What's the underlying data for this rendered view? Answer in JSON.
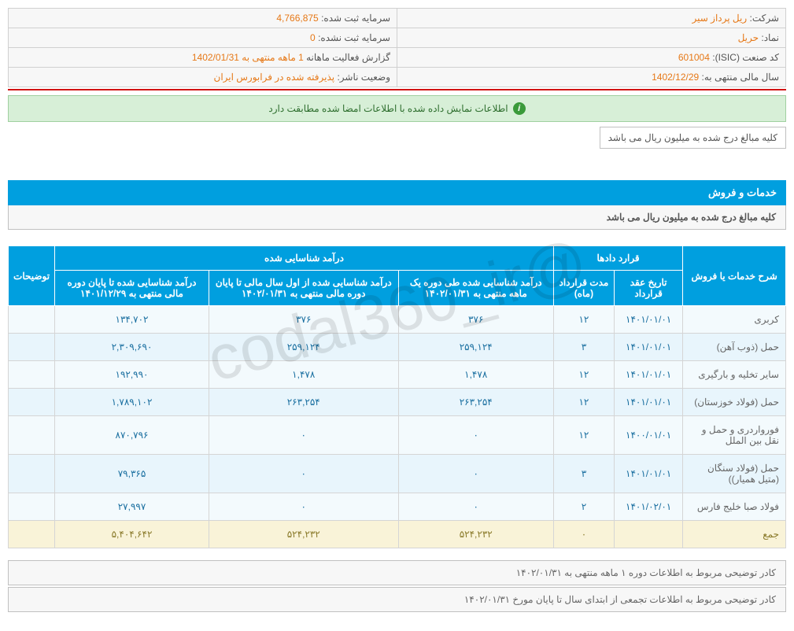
{
  "info": {
    "company_label": "شرکت:",
    "company_value": "ریل پرداز سیر",
    "capital_label": "سرمایه ثبت شده:",
    "capital_value": "4,766,875",
    "symbol_label": "نماد:",
    "symbol_value": "حریل",
    "unreg_capital_label": "سرمایه ثبت نشده:",
    "unreg_capital_value": "0",
    "isic_label": "کد صنعت (ISIC):",
    "isic_value": "601004",
    "report_label": "گزارش فعالیت ماهانه",
    "report_period": "1 ماهه منتهی به",
    "report_date": "1402/01/31",
    "fiscal_label": "سال مالی منتهی به:",
    "fiscal_value": "1402/12/29",
    "publisher_label": "وضعیت ناشر:",
    "publisher_value": "پذیرفته شده در فرابورس ایران"
  },
  "alert": "اطلاعات نمایش داده شده با اطلاعات امضا شده مطابقت دارد",
  "note": "کلیه مبالغ درج شده به میلیون ریال می باشد",
  "section_title": "خدمات و فروش",
  "section_subtitle": "کلیه مبالغ درج شده به میلیون ریال می باشد",
  "table": {
    "headers": {
      "h1": "شرح خدمات یا فروش",
      "h2": "قرارد دادها",
      "h3": "درآمد شناسایی شده",
      "h4": "توضیحات",
      "h2a": "تاریخ عقد قرارداد",
      "h2b": "مدت قرارداد (ماه)",
      "h3a": "درآمد شناسایی شده طی دوره یک ماهه منتهی به ۱۴۰۲/۰۱/۳۱",
      "h3b": "درآمد شناسایی شده از اول سال مالی تا پایان دوره مالی منتهی به ۱۴۰۲/۰۱/۳۱",
      "h3c": "درآمد شناسایی شده تا پایان دوره مالی منتهی به ۱۴۰۱/۱۲/۲۹"
    },
    "rows": [
      {
        "name": "کربری",
        "date": "۱۴۰۱/۰۱/۰۱",
        "dur": "۱۲",
        "a": "۳۷۶",
        "b": "۳۷۶",
        "c": "۱۳۴,۷۰۲",
        "note": ""
      },
      {
        "name": "حمل (ذوب آهن)",
        "date": "۱۴۰۱/۰۱/۰۱",
        "dur": "۳",
        "a": "۲۵۹,۱۲۴",
        "b": "۲۵۹,۱۲۴",
        "c": "۲,۳۰۹,۶۹۰",
        "note": ""
      },
      {
        "name": "سایر تخلیه و بارگیری",
        "date": "۱۴۰۱/۰۱/۰۱",
        "dur": "۱۲",
        "a": "۱,۴۷۸",
        "b": "۱,۴۷۸",
        "c": "۱۹۲,۹۹۰",
        "note": ""
      },
      {
        "name": "حمل (فولاد خوزستان)",
        "date": "۱۴۰۱/۰۱/۰۱",
        "dur": "۱۲",
        "a": "۲۶۳,۲۵۴",
        "b": "۲۶۳,۲۵۴",
        "c": "۱,۷۸۹,۱۰۲",
        "note": ""
      },
      {
        "name": "فورواردری و حمل و نقل بین الملل",
        "date": "۱۴۰۰/۰۱/۰۱",
        "dur": "۱۲",
        "a": "۰",
        "b": "۰",
        "c": "۸۷۰,۷۹۶",
        "note": ""
      },
      {
        "name": "حمل (فولاد سنگان (متیل همیار))",
        "date": "۱۴۰۱/۰۱/۰۱",
        "dur": "۳",
        "a": "۰",
        "b": "۰",
        "c": "۷۹,۳۶۵",
        "note": ""
      },
      {
        "name": "فولاد صبا خلیج فارس",
        "date": "۱۴۰۱/۰۲/۰۱",
        "dur": "۲",
        "a": "۰",
        "b": "۰",
        "c": "۲۷,۹۹۷",
        "note": ""
      }
    ],
    "total": {
      "name": "جمع",
      "date": "",
      "dur": "۰",
      "a": "۵۲۴,۲۳۲",
      "b": "۵۲۴,۲۳۲",
      "c": "۵,۴۰۴,۶۴۲",
      "note": ""
    }
  },
  "footers": {
    "f1": "کادر توضیحی مربوط به اطلاعات دوره ۱ ماهه منتهی به ۱۴۰۲/۰۱/۳۱",
    "f2": "کادر توضیحی مربوط به اطلاعات تجمعی از ابتدای سال تا پایان مورخ ۱۴۰۲/۰۱/۳۱"
  },
  "watermark": "@codal360_ir"
}
